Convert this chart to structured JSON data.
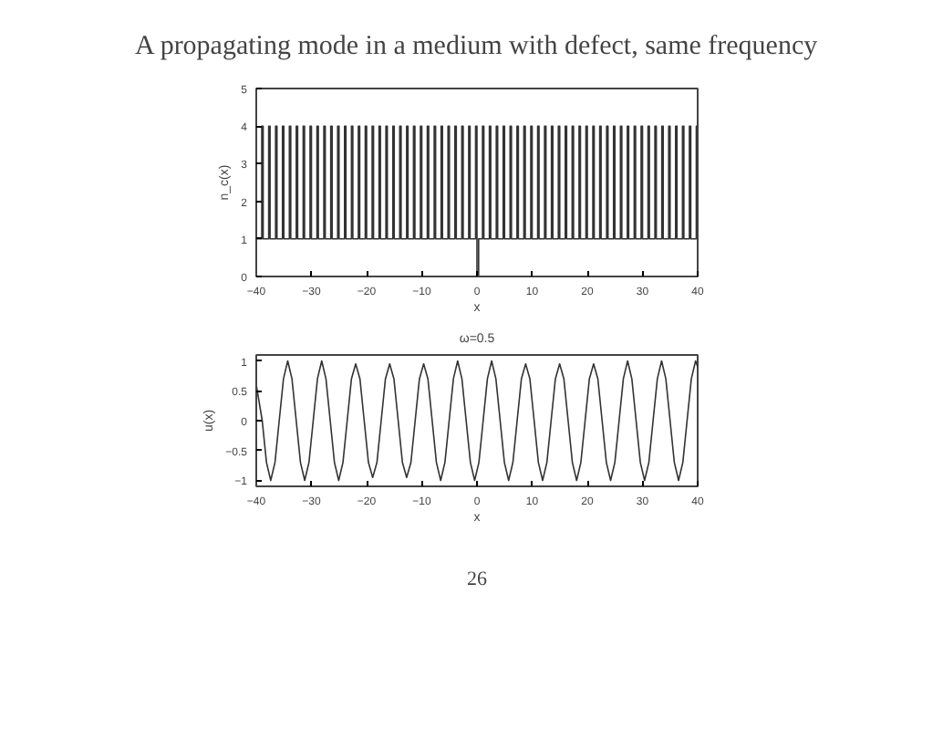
{
  "chart_data": [
    {
      "type": "step",
      "title": "A propagating mode in a medium with defect, same frequency",
      "xlabel": "x",
      "ylabel": "n_c(x)",
      "xlim": [
        -40,
        40
      ],
      "ylim": [
        0,
        5
      ],
      "xticks": [
        -40,
        -30,
        -20,
        -10,
        0,
        10,
        20,
        30,
        40
      ],
      "yticks": [
        0,
        1,
        2,
        3,
        4,
        5
      ],
      "grid": false,
      "marker": "none",
      "line_style": "solid",
      "series": [
        {
          "color": "#333333",
          "x": [
            -40,
            -39,
            -38.75,
            -37.75,
            -37.5,
            -36.5,
            -36.25,
            -35.25,
            -35,
            -34,
            -33.75,
            -32.75,
            -32.5,
            -31.5,
            -31.25,
            -30.25,
            -30,
            -29,
            -28.75,
            -27.75,
            -27.5,
            -26.5,
            -26.25,
            -25.25,
            -25,
            -24,
            -23.75,
            -22.75,
            -22.5,
            -21.5,
            -21.25,
            -20.25,
            -20,
            -19,
            -18.75,
            -17.75,
            -17.5,
            -16.5,
            -16.25,
            -15.25,
            -15,
            -14,
            -13.75,
            -12.75,
            -12.5,
            -11.5,
            -11.25,
            -10.25,
            -10,
            -9,
            -8.75,
            -7.75,
            -7.5,
            -6.5,
            -6.25,
            -5.25,
            -5,
            -4,
            -3.75,
            -2.75,
            -2.5,
            -1.5,
            -1.25,
            -0.25,
            0,
            0.3,
            1,
            1.25,
            2.25,
            2.5,
            3.5,
            3.75,
            4.75,
            5,
            6,
            6.25,
            7.25,
            7.5,
            8.5,
            8.75,
            9.75,
            10,
            11,
            11.25,
            12.25,
            12.5,
            13.5,
            13.75,
            14.75,
            15,
            16,
            16.25,
            17.25,
            17.5,
            18.5,
            18.75,
            19.75,
            20,
            21,
            21.25,
            22.25,
            22.5,
            23.5,
            23.75,
            24.75,
            25,
            26,
            26.25,
            27.25,
            27.5,
            28.5,
            28.75,
            29.75,
            30,
            31,
            31.25,
            32.25,
            32.5,
            33.5,
            33.75,
            34.75,
            35,
            36,
            36.25,
            37.25,
            37.5,
            38.5,
            38.75,
            39.75,
            40
          ],
          "values": [
            1,
            4,
            1,
            4,
            1,
            4,
            1,
            4,
            1,
            4,
            1,
            4,
            1,
            4,
            1,
            4,
            1,
            4,
            1,
            4,
            1,
            4,
            1,
            4,
            1,
            4,
            1,
            4,
            1,
            4,
            1,
            4,
            1,
            4,
            1,
            4,
            1,
            4,
            1,
            4,
            1,
            4,
            1,
            4,
            1,
            4,
            1,
            4,
            1,
            4,
            1,
            4,
            1,
            4,
            1,
            4,
            1,
            4,
            1,
            4,
            1,
            4,
            1,
            4,
            0,
            1,
            4,
            1,
            4,
            1,
            4,
            1,
            4,
            1,
            4,
            1,
            4,
            1,
            4,
            1,
            4,
            1,
            4,
            1,
            4,
            1,
            4,
            1,
            4,
            1,
            4,
            1,
            4,
            1,
            4,
            1,
            4,
            1,
            4,
            1,
            4,
            1,
            4,
            1,
            4,
            1,
            4,
            1,
            4,
            1,
            4,
            1,
            4,
            1,
            4,
            1,
            4,
            1,
            4,
            1,
            4,
            1,
            4,
            1,
            4,
            1,
            4,
            1,
            4,
            4
          ]
        }
      ]
    },
    {
      "type": "line",
      "title": "ω=0.5",
      "xlabel": "x",
      "ylabel": "u(x)",
      "xlim": [
        -40,
        40
      ],
      "ylim": [
        -1.1,
        1.1
      ],
      "xticks": [
        -40,
        -30,
        -20,
        -10,
        0,
        10,
        20,
        30,
        40
      ],
      "yticks": [
        -1,
        -0.5,
        0,
        0.5,
        1
      ],
      "grid": false,
      "marker": "none",
      "line_style": "solid",
      "annotations": [
        "26"
      ],
      "series": [
        {
          "color": "#333333",
          "x": [
            -40,
            -38.92,
            -38.15,
            -37.38,
            -36.61,
            -35.84,
            -35.07,
            -34.3,
            -33.53,
            -32.76,
            -31.99,
            -31.22,
            -30.45,
            -29.68,
            -28.91,
            -28.14,
            -27.37,
            -26.6,
            -25.83,
            -25.06,
            -24.29,
            -23.52,
            -22.75,
            -21.98,
            -21.21,
            -20.44,
            -19.67,
            -18.9,
            -18.13,
            -17.36,
            -16.59,
            -15.82,
            -15.05,
            -14.28,
            -13.51,
            -12.74,
            -11.97,
            -11.2,
            -10.43,
            -9.66,
            -8.89,
            -8.12,
            -7.35,
            -6.58,
            -5.81,
            -5.04,
            -4.27,
            -3.5,
            -2.73,
            -1.96,
            -1.19,
            -0.42,
            0.35,
            1.12,
            1.89,
            2.66,
            3.43,
            4.2,
            4.97,
            5.74,
            6.51,
            7.28,
            8.05,
            8.82,
            9.59,
            10.36,
            11.13,
            11.9,
            12.67,
            13.44,
            14.21,
            14.98,
            15.75,
            16.52,
            17.29,
            18.06,
            18.83,
            19.6,
            20.37,
            21.14,
            21.91,
            22.68,
            23.45,
            24.22,
            24.99,
            25.76,
            26.53,
            27.3,
            28.07,
            28.84,
            29.61,
            30.38,
            31.15,
            31.92,
            32.69,
            33.46,
            34.23,
            35,
            35.77,
            36.54,
            37.31,
            38.08,
            38.85,
            39.62,
            40
          ],
          "values": [
            0.6,
            0,
            -0.7,
            -1,
            -0.7,
            0,
            0.7,
            1,
            0.7,
            0,
            -0.7,
            -1,
            -0.7,
            0,
            0.7,
            1,
            0.7,
            0,
            -0.7,
            -1,
            -0.7,
            0,
            0.7,
            0.95,
            0.7,
            0,
            -0.7,
            -0.95,
            -0.7,
            0,
            0.7,
            0.95,
            0.7,
            0,
            -0.7,
            -0.95,
            -0.7,
            0,
            0.7,
            0.95,
            0.7,
            0,
            -0.7,
            -1,
            -0.7,
            0,
            0.7,
            1,
            0.7,
            0,
            -0.7,
            -1,
            -0.7,
            0,
            0.7,
            1,
            0.7,
            0,
            -0.7,
            -1,
            -0.7,
            0,
            0.7,
            0.95,
            0.7,
            0,
            -0.7,
            -1,
            -0.7,
            0,
            0.7,
            0.95,
            0.7,
            0,
            -0.7,
            -1,
            -0.7,
            0,
            0.7,
            0.95,
            0.7,
            0,
            -0.7,
            -1,
            -0.7,
            0,
            0.7,
            1,
            0.7,
            0,
            -0.7,
            -1,
            -0.7,
            0,
            0.7,
            1,
            0.7,
            0,
            -0.7,
            -1,
            -0.7,
            0,
            0.7,
            1,
            0.9
          ]
        }
      ]
    }
  ]
}
